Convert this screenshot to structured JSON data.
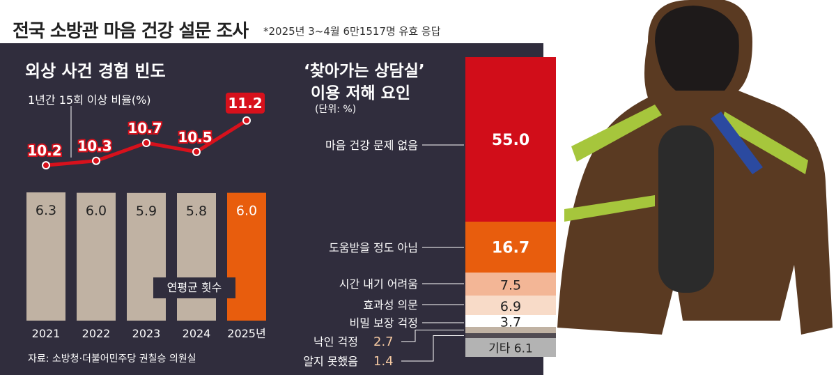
{
  "header": {
    "title": "전국 소방관 마음 건강 설문 조사",
    "note": "*2025년 3~4월 6만1517명 유효 응답"
  },
  "left_chart": {
    "title": "외상 사건 경험 빈도",
    "line_label": "1년간 15회 이상 비율(%)",
    "bar_label": "연평균 횟수",
    "source": "자료: 소방청·더불어민주당 권칠승 의원실"
  },
  "right_chart": {
    "title_line1": "‘찾아가는 상담실’",
    "title_line2": "이용 저해 요인",
    "unit": "(단위: %)"
  },
  "colors": {
    "panel": "#302d3d",
    "bar_beige": "#c0b2a3",
    "highlight_orange": "#e85d0d",
    "line_red": "#d7111c",
    "stack_red": "#d10d19"
  },
  "chart_data": [
    {
      "type": "bar",
      "title": "외상 사건 경험 빈도",
      "categories": [
        "2021",
        "2022",
        "2023",
        "2024",
        "2025년"
      ],
      "series": [
        {
          "name": "연평균 횟수",
          "values": [
            6.3,
            6.0,
            5.9,
            5.8,
            6.0
          ]
        }
      ],
      "highlight_index": 4
    },
    {
      "type": "line",
      "categories": [
        "2021",
        "2022",
        "2023",
        "2024",
        "2025년"
      ],
      "series": [
        {
          "name": "1년간 15회 이상 비율(%)",
          "values": [
            10.2,
            10.3,
            10.7,
            10.5,
            11.2
          ]
        }
      ]
    },
    {
      "type": "bar",
      "stacked": true,
      "title": "‘찾아가는 상담실’ 이용 저해 요인",
      "unit": "(단위: %)",
      "segments": [
        {
          "label": "마음 건강 문제 없음",
          "value": 55.0,
          "display": "55.0",
          "color": "#d10d19",
          "text_color": "#ffffff"
        },
        {
          "label": "도움받을 정도 아님",
          "value": 16.7,
          "display": "16.7",
          "color": "#e85d0d",
          "text_color": "#ffffff"
        },
        {
          "label": "시간 내기 어려움",
          "value": 7.5,
          "display": "7.5",
          "color": "#f3b696",
          "text_color": "#222222"
        },
        {
          "label": "효과성 의문",
          "value": 6.9,
          "display": "6.9",
          "color": "#f8dbc8",
          "text_color": "#222222"
        },
        {
          "label": "비밀 보장 걱정",
          "value": 3.7,
          "display": "3.7",
          "color": "#ffffff",
          "text_color": "#222222"
        },
        {
          "label": "낙인 걱정",
          "value": 2.7,
          "display": "2.7",
          "color": "#c0b2a3",
          "text_color": "#f5c9a2"
        },
        {
          "label": "알지 못했음",
          "value": 1.4,
          "display": "1.4",
          "color": "#514b52",
          "text_color": "#f5c9a2"
        },
        {
          "label": "기타",
          "value": 6.1,
          "display": "6.1",
          "color": "#b3b3b3",
          "text_color": "#222222"
        }
      ]
    }
  ]
}
